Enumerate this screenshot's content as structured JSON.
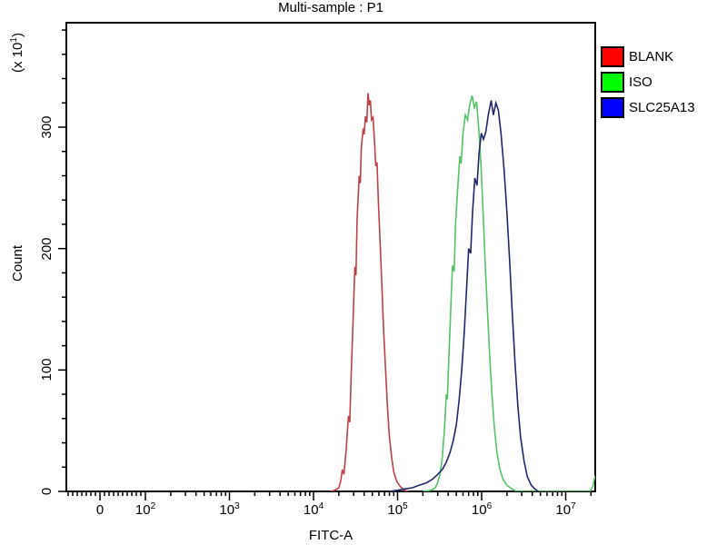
{
  "chart_data": {
    "type": "line",
    "subtype": "flow-cytometry-histogram-overlay",
    "title": "Multi-sample : P1",
    "xlabel": "FITC-A",
    "ylabel": "Count",
    "y_multiplier_label": {
      "prefix": "(x 10",
      "exp": "1",
      "suffix": ")"
    },
    "x_scale": "biexponential-log",
    "x_major_ticks": [
      {
        "value": 0,
        "base": "0",
        "exp": null
      },
      {
        "value": 100,
        "base": "10",
        "exp": "2"
      },
      {
        "value": 1000,
        "base": "10",
        "exp": "3"
      },
      {
        "value": 10000,
        "base": "10",
        "exp": "4"
      },
      {
        "value": 100000,
        "base": "10",
        "exp": "5"
      },
      {
        "value": 1000000,
        "base": "10",
        "exp": "6"
      },
      {
        "value": 10000000,
        "base": "10",
        "exp": "7"
      }
    ],
    "y_major_ticks": [
      0,
      100,
      200,
      300
    ],
    "y_minor_step": 20,
    "ylim": [
      0,
      386
    ],
    "xlim_log": [
      null,
      22400000
    ],
    "grid": false,
    "legend_position": "right-outside",
    "frame_color": "#000000",
    "background_color": "#ffffff",
    "series": [
      {
        "name": "BLANK",
        "legend_color": "#ff0000",
        "line_color": "#bb4248",
        "points": [
          [
            16000,
            0
          ],
          [
            18000,
            1
          ],
          [
            20000,
            3
          ],
          [
            21000,
            8
          ],
          [
            22000,
            18
          ],
          [
            23000,
            14
          ],
          [
            24500,
            35
          ],
          [
            26000,
            62
          ],
          [
            27000,
            57
          ],
          [
            28000,
            95
          ],
          [
            29500,
            140
          ],
          [
            31000,
            185
          ],
          [
            32000,
            178
          ],
          [
            33000,
            225
          ],
          [
            35000,
            260
          ],
          [
            36000,
            254
          ],
          [
            37000,
            283
          ],
          [
            39000,
            299
          ],
          [
            40000,
            294
          ],
          [
            41500,
            309
          ],
          [
            43000,
            304
          ],
          [
            44500,
            328
          ],
          [
            46000,
            318
          ],
          [
            47500,
            322
          ],
          [
            49000,
            306
          ],
          [
            51000,
            308
          ],
          [
            53000,
            290
          ],
          [
            55000,
            268
          ],
          [
            57000,
            271
          ],
          [
            59000,
            240
          ],
          [
            62000,
            205
          ],
          [
            65000,
            170
          ],
          [
            68000,
            135
          ],
          [
            72000,
            100
          ],
          [
            76000,
            68
          ],
          [
            80000,
            45
          ],
          [
            85000,
            28
          ],
          [
            90000,
            16
          ],
          [
            98000,
            8
          ],
          [
            108000,
            4
          ],
          [
            120000,
            1
          ],
          [
            135000,
            0
          ]
        ]
      },
      {
        "name": "ISO",
        "legend_color": "#00ff00",
        "line_color": "#55c368",
        "points": [
          [
            200000,
            0
          ],
          [
            250000,
            1
          ],
          [
            280000,
            3
          ],
          [
            300000,
            7
          ],
          [
            320000,
            14
          ],
          [
            340000,
            28
          ],
          [
            360000,
            50
          ],
          [
            380000,
            80
          ],
          [
            390000,
            76
          ],
          [
            410000,
            115
          ],
          [
            430000,
            152
          ],
          [
            450000,
            186
          ],
          [
            470000,
            181
          ],
          [
            490000,
            220
          ],
          [
            520000,
            250
          ],
          [
            550000,
            276
          ],
          [
            570000,
            270
          ],
          [
            600000,
            295
          ],
          [
            640000,
            310
          ],
          [
            680000,
            306
          ],
          [
            720000,
            318
          ],
          [
            770000,
            326
          ],
          [
            820000,
            316
          ],
          [
            870000,
            321
          ],
          [
            920000,
            300
          ],
          [
            980000,
            270
          ],
          [
            1040000,
            230
          ],
          [
            1100000,
            190
          ],
          [
            1170000,
            150
          ],
          [
            1250000,
            110
          ],
          [
            1330000,
            78
          ],
          [
            1420000,
            52
          ],
          [
            1520000,
            32
          ],
          [
            1650000,
            18
          ],
          [
            1800000,
            10
          ],
          [
            2000000,
            5
          ],
          [
            2300000,
            2
          ],
          [
            2600000,
            0
          ],
          [
            19500000,
            0
          ],
          [
            21000000,
            4
          ],
          [
            22400000,
            13
          ]
        ]
      },
      {
        "name": "SLC25A13",
        "legend_color": "#0000ff",
        "line_color": "#23266b",
        "points": [
          [
            80000,
            0
          ],
          [
            100000,
            1
          ],
          [
            120000,
            2
          ],
          [
            150000,
            3
          ],
          [
            180000,
            5
          ],
          [
            220000,
            7
          ],
          [
            260000,
            10
          ],
          [
            300000,
            14
          ],
          [
            340000,
            18
          ],
          [
            380000,
            24
          ],
          [
            420000,
            32
          ],
          [
            460000,
            42
          ],
          [
            500000,
            55
          ],
          [
            540000,
            75
          ],
          [
            580000,
            100
          ],
          [
            620000,
            130
          ],
          [
            660000,
            165
          ],
          [
            700000,
            200
          ],
          [
            740000,
            196
          ],
          [
            780000,
            230
          ],
          [
            830000,
            258
          ],
          [
            880000,
            252
          ],
          [
            930000,
            278
          ],
          [
            990000,
            295
          ],
          [
            1050000,
            290
          ],
          [
            1120000,
            296
          ],
          [
            1200000,
            310
          ],
          [
            1300000,
            322
          ],
          [
            1380000,
            310
          ],
          [
            1480000,
            320
          ],
          [
            1580000,
            314
          ],
          [
            1700000,
            295
          ],
          [
            1850000,
            265
          ],
          [
            2000000,
            230
          ],
          [
            2150000,
            190
          ],
          [
            2300000,
            150
          ],
          [
            2500000,
            105
          ],
          [
            2700000,
            70
          ],
          [
            2900000,
            45
          ],
          [
            3200000,
            25
          ],
          [
            3500000,
            12
          ],
          [
            3900000,
            5
          ],
          [
            4300000,
            2
          ],
          [
            4700000,
            0
          ]
        ]
      }
    ]
  }
}
